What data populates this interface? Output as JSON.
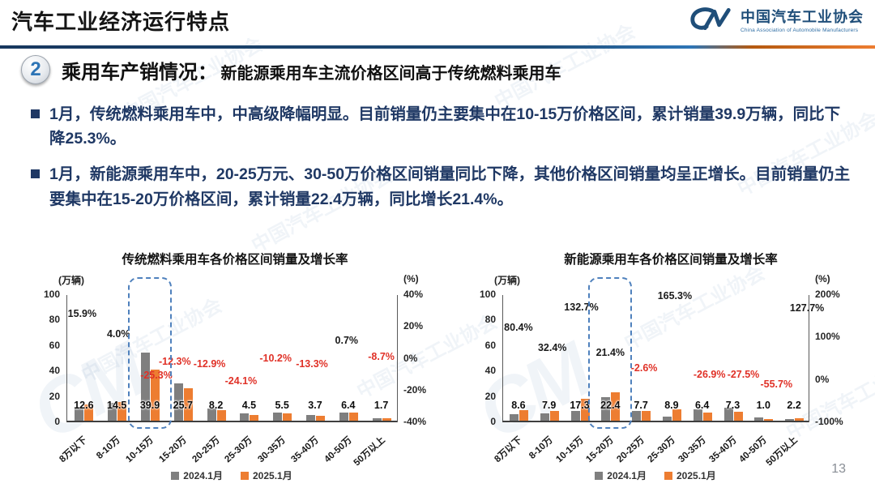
{
  "header": {
    "title": "汽车工业经济运行特点",
    "logo": {
      "mark": "CM",
      "name_cn": "中国汽车工业协会",
      "name_en": "China Association of Automobile Manufacturers"
    }
  },
  "section": {
    "number": "2",
    "heading": "乘用车产销情况：",
    "subheading": "新能源乘用车主流价格区间高于传统燃料乘用车"
  },
  "bullets": [
    "1月，传统燃料乘用车中，中高级降幅明显。目前销量仍主要集中在10-15万价格区间，累计销量39.9万辆，同比下降25.3%。",
    "1月，新能源乘用车中，20-25万元、30-50万价格区间销量同比下降，其他价格区间销量均呈正增长。目前销量仍主要集中在15-20万价格区间，累计销量22.4万辆，同比增长21.4%。"
  ],
  "watermark_text": "中国汽车工业协会",
  "footer": {
    "page_number": "13"
  },
  "colors": {
    "bar_2024": "#7f7f7f",
    "bar_2025": "#ed7d31",
    "growth_negative": "#e03127",
    "growth_positive": "#1a1a1a",
    "bullet_text": "#1f3864",
    "accent_blue": "#1f4e79",
    "highlight_dash": "#4f81bd"
  },
  "chart_data": [
    {
      "type": "bar",
      "title": "传统燃料乘用车各价格区间销量及增长率",
      "unit_left": "(万辆)",
      "unit_right": "(%)",
      "ylim": [
        0,
        100
      ],
      "left_ticks": [
        "100",
        "80",
        "60",
        "40",
        "20",
        "0"
      ],
      "right_ticks": [
        "40%",
        "20%",
        "0%",
        "-20%",
        "-40%"
      ],
      "grid": false,
      "legend_position": "bottom",
      "categories": [
        "8万以下",
        "8-10万",
        "10-15万",
        "15-20万",
        "20-25万",
        "25-30万",
        "30-35万",
        "35-40万",
        "40-50万",
        "50万以上"
      ],
      "series": [
        {
          "name": "2024.1月",
          "color": "#7f7f7f",
          "values": [
            10.9,
            13.9,
            53.4,
            29.3,
            9.4,
            5.9,
            6.1,
            4.3,
            6.4,
            1.9
          ]
        },
        {
          "name": "2025.1月",
          "color": "#ed7d31",
          "values": [
            12.6,
            14.5,
            39.9,
            25.7,
            8.2,
            4.5,
            5.5,
            3.7,
            6.4,
            1.7
          ]
        }
      ],
      "value_labels": [
        "12.6",
        "14.5",
        "39.9",
        "25.7",
        "8.2",
        "4.5",
        "5.5",
        "3.7",
        "6.4",
        "1.7"
      ],
      "growth_labels": [
        {
          "text": "15.9%",
          "cat": 0,
          "dx": -2,
          "top_pct": 15,
          "neg": false
        },
        {
          "text": "4.0%",
          "cat": 1,
          "dx": 2,
          "top_pct": 31,
          "neg": false
        },
        {
          "text": "-25.3%",
          "cat": 2,
          "dx": 8,
          "top_pct": 64,
          "neg": true
        },
        {
          "text": "-12.3%",
          "cat": 3,
          "dx": -10,
          "top_pct": 53,
          "neg": true
        },
        {
          "text": "-12.9%",
          "cat": 4,
          "dx": -8,
          "top_pct": 55,
          "neg": true
        },
        {
          "text": "-24.1%",
          "cat": 5,
          "dx": -10,
          "top_pct": 68,
          "neg": true
        },
        {
          "text": "-10.2%",
          "cat": 6,
          "dx": -8,
          "top_pct": 50,
          "neg": true
        },
        {
          "text": "-13.3%",
          "cat": 7,
          "dx": -4,
          "top_pct": 55,
          "neg": true
        },
        {
          "text": "0.7%",
          "cat": 8,
          "dx": -2,
          "top_pct": 36,
          "neg": false
        },
        {
          "text": "-8.7%",
          "cat": 9,
          "dx": 0,
          "top_pct": 49,
          "neg": true
        }
      ],
      "highlight_index": 2
    },
    {
      "type": "bar",
      "title": "新能源乘用车各价格区间销量及增长率",
      "unit_left": "(万辆)",
      "unit_right": "(%)",
      "ylim": [
        0,
        100
      ],
      "left_ticks": [
        "100",
        "80",
        "60",
        "40",
        "20",
        "0"
      ],
      "right_ticks": [
        "200%",
        "100%",
        "0%",
        "-100%"
      ],
      "grid": false,
      "legend_position": "bottom",
      "categories": [
        "8万以下",
        "8-10万",
        "10-15万",
        "15-20万",
        "20-25万",
        "25-30万",
        "30-35万",
        "35-40万",
        "40-50万",
        "50万以上"
      ],
      "series": [
        {
          "name": "2024.1月",
          "color": "#7f7f7f",
          "values": [
            4.8,
            6.0,
            7.4,
            18.5,
            7.9,
            3.4,
            8.8,
            10.1,
            2.3,
            1.0
          ]
        },
        {
          "name": "2025.1月",
          "color": "#ed7d31",
          "values": [
            8.6,
            7.9,
            17.3,
            22.4,
            7.7,
            8.9,
            6.4,
            7.3,
            1.0,
            2.2
          ]
        }
      ],
      "value_labels": [
        "8.6",
        "7.9",
        "17.3",
        "22.4",
        "7.7",
        "8.9",
        "6.4",
        "7.3",
        "1.0",
        "2.2"
      ],
      "growth_labels": [
        {
          "text": "80.4%",
          "cat": 0,
          "dx": 0,
          "top_pct": 26,
          "neg": false
        },
        {
          "text": "32.4%",
          "cat": 1,
          "dx": 4,
          "top_pct": 42,
          "neg": false
        },
        {
          "text": "132.7%",
          "cat": 2,
          "dx": 2,
          "top_pct": 10,
          "neg": false
        },
        {
          "text": "21.4%",
          "cat": 3,
          "dx": 0,
          "top_pct": 46,
          "neg": false
        },
        {
          "text": "-2.6%",
          "cat": 4,
          "dx": 4,
          "top_pct": 58,
          "neg": true
        },
        {
          "text": "165.3%",
          "cat": 5,
          "dx": 4,
          "top_pct": 1,
          "neg": false
        },
        {
          "text": "-26.9%",
          "cat": 6,
          "dx": 9,
          "top_pct": 63,
          "neg": true
        },
        {
          "text": "-27.5%",
          "cat": 7,
          "dx": 13,
          "top_pct": 63,
          "neg": true
        },
        {
          "text": "-55.7%",
          "cat": 8,
          "dx": 16,
          "top_pct": 71,
          "neg": true
        },
        {
          "text": "127.7%",
          "cat": 9,
          "dx": 16,
          "top_pct": 11,
          "neg": false
        }
      ],
      "highlight_index": 3
    }
  ]
}
